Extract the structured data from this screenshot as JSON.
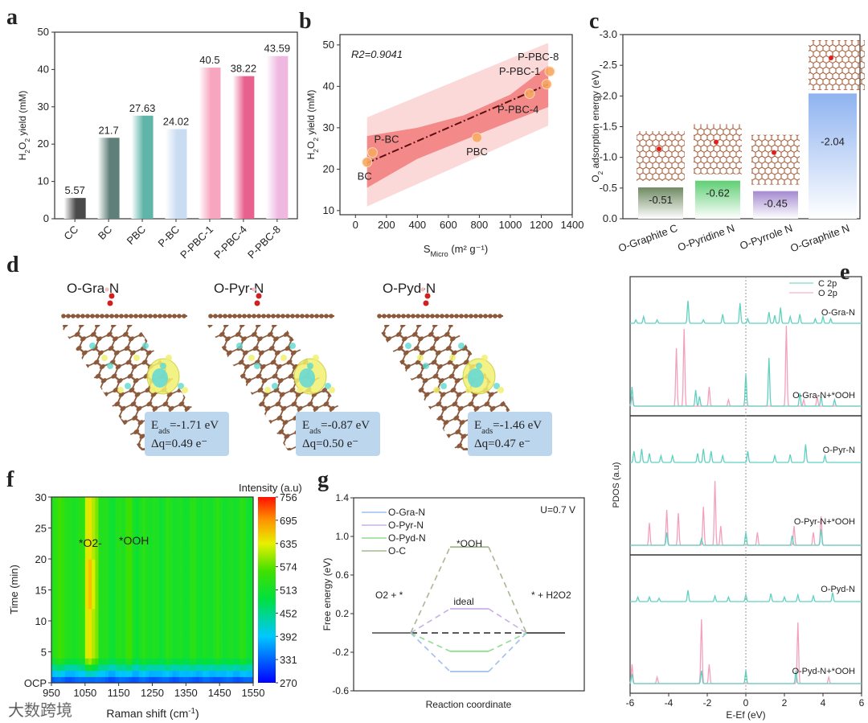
{
  "panel_letters": [
    "a",
    "b",
    "c",
    "d",
    "e",
    "f",
    "g"
  ],
  "watermark": "大数跨境",
  "chart_data": [
    {
      "id": "a",
      "type": "bar",
      "categories": [
        "CC",
        "BC",
        "PBC",
        "P-BC",
        "P-PBC-1",
        "P-PBC-4",
        "P-PBC-8"
      ],
      "values": [
        5.57,
        21.7,
        27.63,
        24.02,
        40.5,
        38.22,
        43.59
      ],
      "value_labels": [
        "5.57",
        "21.7",
        "27.63",
        "24.02",
        "40.5",
        "38.22",
        "43.59"
      ],
      "colors": [
        "#4a4a4a",
        "#5f7f7a",
        "#5fb5a8",
        "#c9dcf2",
        "#f7a6c0",
        "#e8608e",
        "#efb8e0"
      ],
      "ylabel": "H2O2 yield (mM)",
      "ylim": [
        0,
        50
      ],
      "yticks": [
        0,
        10,
        20,
        30,
        40,
        50
      ]
    },
    {
      "id": "b",
      "type": "scatter",
      "annotation": "R2=0.9041",
      "points": [
        {
          "label": "BC",
          "x": 75,
          "y": 21.7
        },
        {
          "label": "P-BC",
          "x": 110,
          "y": 24.02
        },
        {
          "label": "PBC",
          "x": 785,
          "y": 27.63
        },
        {
          "label": "P-PBC-4",
          "x": 1125,
          "y": 38.22
        },
        {
          "label": "P-PBC-1",
          "x": 1235,
          "y": 40.5
        },
        {
          "label": "P-PBC-8",
          "x": 1255,
          "y": 43.59
        }
      ],
      "fit_line": [
        [
          75,
          21.5
        ],
        [
          1245,
          40.5
        ]
      ],
      "confidence_band": {
        "x": [
          75,
          400,
          700,
          1000,
          1245
        ],
        "lower": [
          15.5,
          22.5,
          27,
          31.5,
          35
        ],
        "upper": [
          28,
          30,
          33,
          38,
          45
        ]
      },
      "prediction_band": {
        "x": [
          75,
          1245
        ],
        "lower": [
          11,
          30.5
        ],
        "upper": [
          32.5,
          50.5
        ]
      },
      "xlabel": "SMicro (m2 g-1)",
      "xlabel_main": "S",
      "xlabel_sub": "Micro",
      "xlabel_rest": " (m² g⁻¹)",
      "ylabel": "H2O2 yield (mM)",
      "xlim": [
        -100,
        1400
      ],
      "ylim": [
        9,
        52.5
      ],
      "xticks": [
        0,
        200,
        400,
        600,
        800,
        1000,
        1200,
        1400
      ],
      "yticks": [
        10,
        20,
        30,
        40,
        50
      ]
    },
    {
      "id": "c",
      "type": "bar",
      "categories": [
        "O-Graphite C",
        "O-Pyridine N",
        "O-Pyrrole N",
        "O-Graphite N"
      ],
      "values": [
        -0.51,
        -0.62,
        -0.45,
        -2.04
      ],
      "value_labels": [
        "-0.51",
        "-0.62",
        "-0.45",
        "-2.04"
      ],
      "colors": [
        "#6f8a62",
        "#5fcf74",
        "#a58ad0",
        "#8fb3f0"
      ],
      "ylabel": "O2 adsorption energy (eV)",
      "ylim": [
        0,
        -3.0
      ],
      "yticks": [
        "0.0",
        "-0.5",
        "-1.0",
        "-1.5",
        "-2.0",
        "-2.5",
        "-3.0"
      ]
    },
    {
      "id": "e",
      "type": "line",
      "legend": [
        "C 2p",
        "O 2p"
      ],
      "colors": {
        "C 2p": "#5fd0c0",
        "O 2p": "#f4a0bc"
      },
      "xlabel": "E-Ef (eV)",
      "ylabel": "PDOS (a.u)",
      "xlim": [
        -6,
        6
      ],
      "xticks": [
        -6,
        -4,
        -2,
        0,
        2,
        4,
        6
      ],
      "subplots": [
        {
          "label": "O-Gra-N",
          "series": "C 2p",
          "peaks": [
            [
              -5.7,
              0.15
            ],
            [
              -5.3,
              0.3
            ],
            [
              -4.6,
              0.15
            ],
            [
              -3.0,
              1.0
            ],
            [
              -2.2,
              0.15
            ],
            [
              -1.2,
              0.4
            ],
            [
              -0.3,
              0.9
            ],
            [
              0.1,
              0.2
            ],
            [
              1.2,
              0.5
            ],
            [
              1.5,
              0.35
            ],
            [
              1.8,
              0.7
            ],
            [
              2.3,
              0.3
            ],
            [
              2.8,
              0.4
            ],
            [
              3.6,
              0.2
            ],
            [
              4.0,
              0.3
            ],
            [
              4.4,
              0.2
            ]
          ]
        },
        {
          "label": "O-Gra-N+*OOH",
          "series": "O 2p",
          "peaks": [
            [
              -5.9,
              0.15
            ],
            [
              -3.6,
              0.9
            ],
            [
              -3.2,
              1.2
            ],
            [
              -1.9,
              0.3
            ],
            [
              -0.9,
              0.1
            ],
            [
              2.1,
              1.25
            ],
            [
              3.0,
              0.1
            ],
            [
              3.7,
              0.15
            ]
          ]
        },
        {
          "label": "O-Gra-N+*OOH",
          "series": "C 2p",
          "peaks": [
            [
              -5.9,
              0.3
            ],
            [
              -2.6,
              0.25
            ],
            [
              -2.4,
              0.15
            ],
            [
              0,
              0.5
            ],
            [
              1.2,
              0.75
            ],
            [
              2.8,
              0.2
            ],
            [
              3.9,
              0.15
            ],
            [
              4.6,
              0.1
            ]
          ]
        },
        {
          "label": "O-Pyr-N",
          "series": "C 2p",
          "peaks": [
            [
              -5.8,
              0.5
            ],
            [
              -5.4,
              0.6
            ],
            [
              -5.0,
              0.4
            ],
            [
              -4.4,
              0.3
            ],
            [
              -3.8,
              0.3
            ],
            [
              -2.5,
              0.4
            ],
            [
              -2.2,
              0.6
            ],
            [
              -1.8,
              0.5
            ],
            [
              -1.2,
              0.3
            ],
            [
              0.1,
              0.5
            ],
            [
              1.5,
              0.3
            ],
            [
              2.3,
              0.35
            ],
            [
              3.1,
              0.8
            ],
            [
              4.1,
              0.3
            ]
          ]
        },
        {
          "label": "O-Pyr-N+*OOH",
          "series": "O 2p",
          "peaks": [
            [
              -5.0,
              0.35
            ],
            [
              -4.1,
              0.55
            ],
            [
              -3.5,
              0.5
            ],
            [
              -2.2,
              0.6
            ],
            [
              -1.6,
              1.0
            ],
            [
              -1.3,
              0.3
            ],
            [
              0.6,
              0.2
            ],
            [
              2.5,
              0.3
            ],
            [
              3.5,
              0.2
            ],
            [
              3.9,
              0.45
            ]
          ]
        },
        {
          "label": "O-Pyr-N+*OOH",
          "series": "C 2p",
          "peaks": [
            [
              -4.1,
              0.2
            ],
            [
              -2.3,
              0.1
            ],
            [
              0,
              0.2
            ],
            [
              2.4,
              0.15
            ],
            [
              3.9,
              0.25
            ]
          ]
        },
        {
          "label": "O-Pyd-N",
          "series": "C 2p",
          "peaks": [
            [
              -5.6,
              0.2
            ],
            [
              -5.0,
              0.2
            ],
            [
              -4.5,
              0.15
            ],
            [
              -3.0,
              0.5
            ],
            [
              -1.6,
              0.25
            ],
            [
              -0.9,
              0.2
            ],
            [
              0,
              0.3
            ],
            [
              1.3,
              0.35
            ],
            [
              2.0,
              0.2
            ],
            [
              2.7,
              0.3
            ],
            [
              3.5,
              0.25
            ],
            [
              4.5,
              0.4
            ]
          ]
        },
        {
          "label": "O-Pyd-N+*OOH",
          "series": "O 2p",
          "peaks": [
            [
              -5.9,
              0.3
            ],
            [
              -4.6,
              0.1
            ],
            [
              -2.3,
              1.0
            ],
            [
              -1.9,
              0.3
            ],
            [
              2.7,
              0.95
            ],
            [
              4.3,
              0.1
            ]
          ]
        },
        {
          "label": "O-Pyd-N+*OOH",
          "series": "C 2p",
          "peaks": [
            [
              -5.9,
              0.15
            ],
            [
              -2.3,
              0.2
            ],
            [
              0,
              0.2
            ],
            [
              2.6,
              0.2
            ]
          ]
        }
      ]
    },
    {
      "id": "f",
      "type": "heatmap",
      "xlabel": "Raman shift (cm-1)",
      "ylabel": "Time (min)",
      "xlim": [
        950,
        1550
      ],
      "xticks": [
        950,
        1050,
        1150,
        1250,
        1350,
        1450,
        1550
      ],
      "ylim": [
        0,
        30
      ],
      "yticks": [
        "OCP",
        "5",
        "10",
        "15",
        "20",
        "25",
        "30"
      ],
      "colorbar_title": "Intensity (a.u)",
      "colorbar_ticks": [
        270,
        331,
        392,
        452,
        513,
        574,
        635,
        695,
        756
      ],
      "annotations": [
        "*O2-",
        "*OOH"
      ],
      "band_peaks": [
        {
          "x": 1060,
          "intensity": 680
        },
        {
          "x": 1080,
          "intensity": 600
        },
        {
          "x": 980,
          "intensity": 580
        },
        {
          "x": 1180,
          "intensity": 560
        }
      ],
      "background_intensity": 520,
      "ocp_intensity": 300
    },
    {
      "id": "g",
      "type": "line",
      "annotation": "U=0.7 V",
      "series": [
        {
          "name": "O-Gra-N",
          "color": "#9fbfef",
          "values": [
            0,
            -0.4,
            0
          ]
        },
        {
          "name": "O-Pyr-N",
          "color": "#c8b0e6",
          "values": [
            0,
            0.25,
            0
          ]
        },
        {
          "name": "O-Pyd-N",
          "color": "#90dc90",
          "values": [
            0,
            -0.19,
            0
          ]
        },
        {
          "name": "O-C",
          "color": "#a8b890",
          "values": [
            0,
            0.89,
            0
          ]
        }
      ],
      "states": [
        "O2 + *",
        "*OOH",
        "* + H2O2"
      ],
      "ideal_label": "ideal",
      "xlabel": "Reaction coordinate",
      "ylabel": "Free energy (eV)",
      "ylim": [
        -0.6,
        1.4
      ],
      "yticks": [
        "-0.6",
        "-0.2",
        "0.2",
        "0.6",
        "1.0",
        "1.4"
      ]
    }
  ],
  "panel_d": {
    "structures": [
      {
        "title": "O-Gra-N",
        "eads": "-1.71 eV",
        "dq": "0.49 e⁻"
      },
      {
        "title": "O-Pyr-N",
        "eads": "-0.87 eV",
        "dq": "0.50 e⁻"
      },
      {
        "title": "O-Pyd-N",
        "eads": "-1.46 eV",
        "dq": "0.47 e⁻"
      }
    ],
    "eads_prefix": "E",
    "eads_sub": "ads",
    "dq_prefix": "Δq="
  }
}
